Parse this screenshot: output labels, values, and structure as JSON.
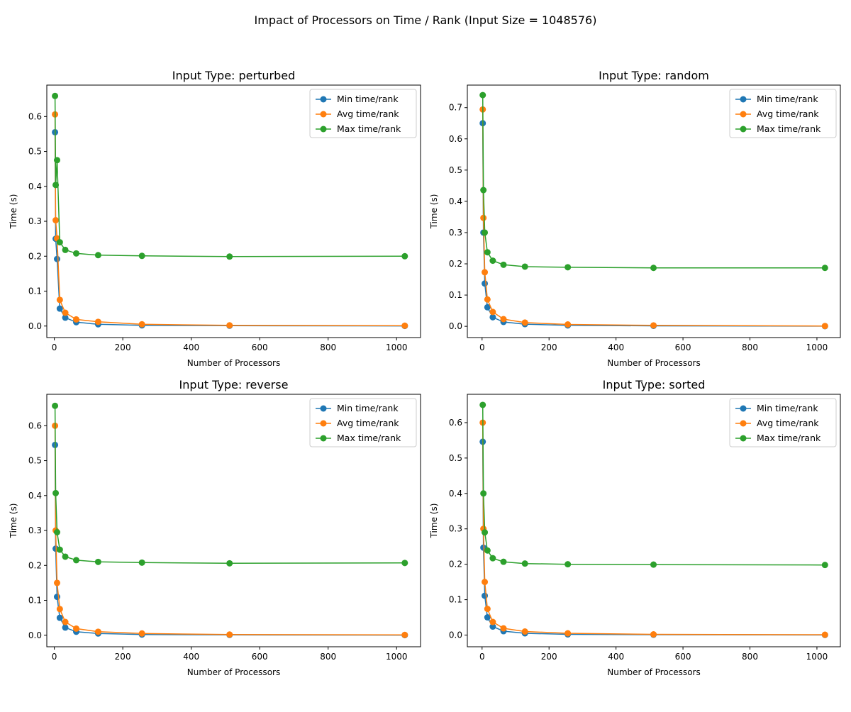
{
  "figure_title": "Impact of Processors on Time / Rank (Input Size = 1048576)",
  "colors": {
    "min": "#1f77b4",
    "avg": "#ff7f0e",
    "max": "#2ca02c"
  },
  "chart_data": [
    {
      "type": "line",
      "title": "Input Type: perturbed",
      "xlabel": "Number of Processors",
      "ylabel": "Time (s)",
      "xlim": [
        -22,
        1070
      ],
      "ylim": [
        -0.033,
        0.69
      ],
      "xticks": [
        0,
        200,
        400,
        600,
        800,
        1000
      ],
      "xtick_labels": [
        "0",
        "200",
        "400",
        "600",
        "800",
        "1000"
      ],
      "yticks": [
        0.0,
        0.1,
        0.2,
        0.3,
        0.4,
        0.5,
        0.6
      ],
      "ytick_labels": [
        "0.0",
        "0.1",
        "0.2",
        "0.3",
        "0.4",
        "0.5",
        "0.6"
      ],
      "legend_position": "top-right",
      "x": [
        2,
        4,
        8,
        16,
        32,
        64,
        128,
        256,
        512,
        1024
      ],
      "series": [
        {
          "name": "Min time/rank",
          "values": [
            0.555,
            0.25,
            0.192,
            0.05,
            0.024,
            0.011,
            0.005,
            0.002,
            0.001,
            0.0003
          ]
        },
        {
          "name": "Avg time/rank",
          "values": [
            0.606,
            0.303,
            0.251,
            0.075,
            0.038,
            0.019,
            0.012,
            0.005,
            0.002,
            0.001
          ]
        },
        {
          "name": "Max time/rank",
          "values": [
            0.659,
            0.404,
            0.475,
            0.24,
            0.218,
            0.208,
            0.203,
            0.201,
            0.199,
            0.2
          ]
        }
      ]
    },
    {
      "type": "line",
      "title": "Input Type: random",
      "xlabel": "Number of Processors",
      "ylabel": "Time (s)",
      "xlim": [
        -44,
        1070
      ],
      "ylim": [
        -0.036,
        0.772
      ],
      "xticks": [
        0,
        200,
        400,
        600,
        800,
        1000
      ],
      "xtick_labels": [
        "0",
        "200",
        "400",
        "600",
        "800",
        "1000"
      ],
      "yticks": [
        0.0,
        0.1,
        0.2,
        0.3,
        0.4,
        0.5,
        0.6,
        0.7
      ],
      "ytick_labels": [
        "0.0",
        "0.1",
        "0.2",
        "0.3",
        "0.4",
        "0.5",
        "0.6",
        "0.7"
      ],
      "legend_position": "top-right",
      "x": [
        2,
        4,
        8,
        16,
        32,
        64,
        128,
        256,
        512,
        1024
      ],
      "series": [
        {
          "name": "Min time/rank",
          "values": [
            0.65,
            0.3,
            0.137,
            0.061,
            0.029,
            0.014,
            0.007,
            0.003,
            0.0015,
            0.0005
          ]
        },
        {
          "name": "Avg time/rank",
          "values": [
            0.694,
            0.347,
            0.173,
            0.086,
            0.046,
            0.023,
            0.012,
            0.006,
            0.003,
            0.001
          ]
        },
        {
          "name": "Max time/rank",
          "values": [
            0.74,
            0.436,
            0.3,
            0.237,
            0.21,
            0.197,
            0.191,
            0.189,
            0.187,
            0.187
          ]
        }
      ]
    },
    {
      "type": "line",
      "title": "Input Type: reverse",
      "xlabel": "Number of Processors",
      "ylabel": "Time (s)",
      "xlim": [
        -22,
        1070
      ],
      "ylim": [
        -0.033,
        0.69
      ],
      "xticks": [
        0,
        200,
        400,
        600,
        800,
        1000
      ],
      "xtick_labels": [
        "0",
        "200",
        "400",
        "600",
        "800",
        "1000"
      ],
      "yticks": [
        0.0,
        0.1,
        0.2,
        0.3,
        0.4,
        0.5,
        0.6
      ],
      "ytick_labels": [
        "0.0",
        "0.1",
        "0.2",
        "0.3",
        "0.4",
        "0.5",
        "0.6"
      ],
      "legend_position": "top-right",
      "x": [
        2,
        4,
        8,
        16,
        32,
        64,
        128,
        256,
        512,
        1024
      ],
      "series": [
        {
          "name": "Min time/rank",
          "values": [
            0.545,
            0.248,
            0.11,
            0.05,
            0.022,
            0.01,
            0.005,
            0.002,
            0.001,
            0.0003
          ]
        },
        {
          "name": "Avg time/rank",
          "values": [
            0.6,
            0.3,
            0.15,
            0.075,
            0.038,
            0.019,
            0.01,
            0.005,
            0.002,
            0.001
          ]
        },
        {
          "name": "Max time/rank",
          "values": [
            0.657,
            0.407,
            0.295,
            0.245,
            0.225,
            0.215,
            0.21,
            0.208,
            0.206,
            0.207
          ]
        }
      ]
    },
    {
      "type": "line",
      "title": "Input Type: sorted",
      "xlabel": "Number of Processors",
      "ylabel": "Time (s)",
      "xlim": [
        -44,
        1070
      ],
      "ylim": [
        -0.033,
        0.68
      ],
      "xticks": [
        0,
        200,
        400,
        600,
        800,
        1000
      ],
      "xtick_labels": [
        "0",
        "200",
        "400",
        "600",
        "800",
        "1000"
      ],
      "yticks": [
        0.0,
        0.1,
        0.2,
        0.3,
        0.4,
        0.5,
        0.6
      ],
      "ytick_labels": [
        "0.0",
        "0.1",
        "0.2",
        "0.3",
        "0.4",
        "0.5",
        "0.6"
      ],
      "legend_position": "top-right",
      "x": [
        2,
        4,
        8,
        16,
        32,
        64,
        128,
        256,
        512,
        1024
      ],
      "series": [
        {
          "name": "Min time/rank",
          "values": [
            0.546,
            0.247,
            0.111,
            0.05,
            0.024,
            0.011,
            0.005,
            0.002,
            0.001,
            0.0003
          ]
        },
        {
          "name": "Avg time/rank",
          "values": [
            0.6,
            0.3,
            0.15,
            0.074,
            0.037,
            0.019,
            0.01,
            0.005,
            0.002,
            0.001
          ]
        },
        {
          "name": "Max time/rank",
          "values": [
            0.65,
            0.4,
            0.29,
            0.239,
            0.217,
            0.207,
            0.202,
            0.2,
            0.199,
            0.198
          ]
        }
      ]
    }
  ]
}
